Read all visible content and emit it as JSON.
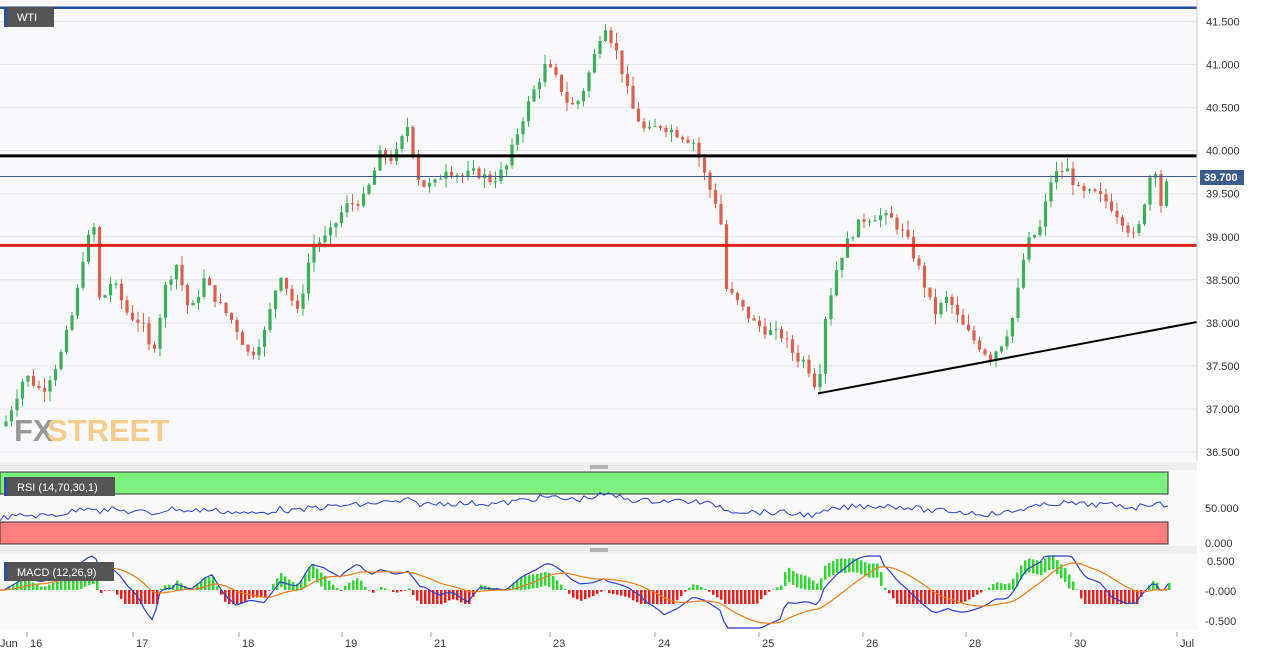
{
  "instrument": "WTI",
  "chart_data": [
    {
      "type": "candlestick",
      "title": "WTI",
      "ylim": [
        36.4,
        41.68
      ],
      "y_ticks": [
        "41.500",
        "41.000",
        "40.500",
        "40.000",
        "39.500",
        "39.000",
        "38.500",
        "38.000",
        "37.500",
        "37.000",
        "36.500"
      ],
      "x_labels": [
        "Jun",
        "16",
        "17",
        "18",
        "19",
        "21",
        "23",
        "24",
        "25",
        "26",
        "28",
        "30",
        "Jul"
      ],
      "current_price_label": "39.700",
      "current_price": 39.7,
      "horizontal_levels": [
        {
          "value": 41.66,
          "color": "#1f4e9c"
        },
        {
          "value": 39.94,
          "color": "#000000"
        },
        {
          "value": 39.7,
          "color": "#3c5a8c"
        },
        {
          "value": 38.9,
          "color": "#e0201b"
        }
      ],
      "trendline": {
        "color": "#000000"
      },
      "colors": {
        "up": "#3cae5c",
        "down": "#d66150"
      },
      "watermark": {
        "part1": "FX",
        "part2": "STREET"
      }
    },
    {
      "type": "line",
      "indicator_label": "RSI (14,70,30,1)",
      "y_ticks": [
        "50.000",
        "0.000"
      ],
      "zones": {
        "overbought": "#7ef07e",
        "oversold": "#ff7f7f"
      },
      "line_color": "#2b3fd1"
    },
    {
      "type": "bar",
      "indicator_label": "MACD (12,26,9)",
      "y_ticks": [
        "0.500",
        "-0.000",
        "-0.500"
      ],
      "line_colors": {
        "macd": "#2b3fd1",
        "signal": "#f07d18"
      },
      "hist_colors": {
        "positive": "#33d633",
        "negative": "#e61e1e"
      }
    }
  ]
}
